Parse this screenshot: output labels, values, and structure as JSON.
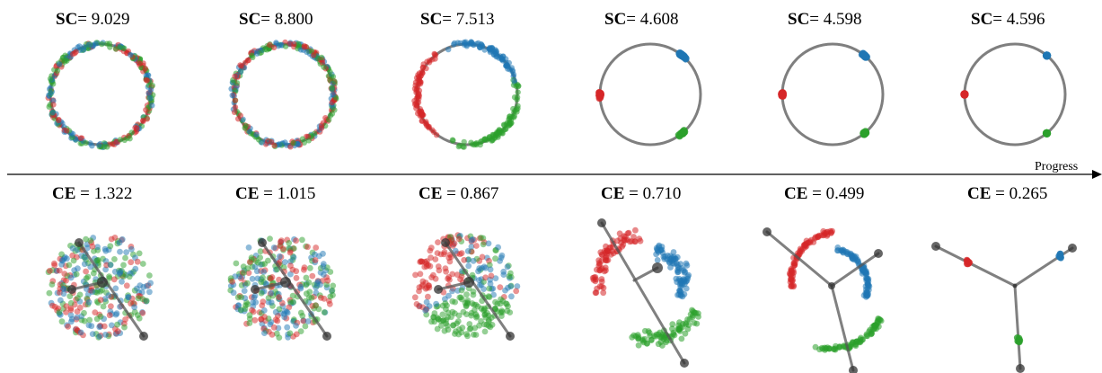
{
  "progress_label": "Progress",
  "colors": {
    "red": "#d62728",
    "blue": "#1f77b4",
    "green": "#2ca02c",
    "ring": "#7f7f7f",
    "node": "#333333"
  },
  "sc_symbol": "SC",
  "ce_symbol": "CE",
  "sc_panels": [
    {
      "value": "9.029",
      "mode": "mixed"
    },
    {
      "value": "8.800",
      "mode": "mixed"
    },
    {
      "value": "7.513",
      "mode": "partial"
    },
    {
      "value": "4.608",
      "mode": "clustered"
    },
    {
      "value": "4.598",
      "mode": "tight"
    },
    {
      "value": "4.596",
      "mode": "dots"
    }
  ],
  "ce_panels": [
    {
      "value": "1.322",
      "mode": "disc"
    },
    {
      "value": "1.015",
      "mode": "disc"
    },
    {
      "value": "0.867",
      "mode": "disc-arc"
    },
    {
      "value": "0.710",
      "mode": "arcs"
    },
    {
      "value": "0.499",
      "mode": "arcs-tight"
    },
    {
      "value": "0.265",
      "mode": "dots"
    }
  ]
}
